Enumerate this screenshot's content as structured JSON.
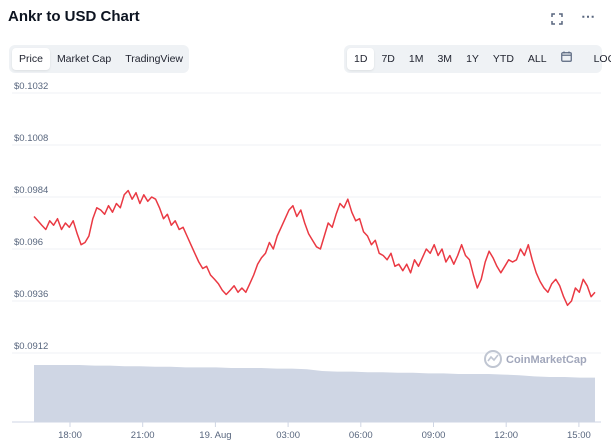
{
  "header": {
    "title": "Ankr to USD Chart",
    "fullscreen_icon": "fullscreen-icon",
    "more_icon": "more-icon"
  },
  "view_tabs": [
    {
      "label": "Price",
      "active": true
    },
    {
      "label": "Market Cap",
      "active": false
    },
    {
      "label": "TradingView",
      "active": false
    }
  ],
  "range_tabs": [
    {
      "label": "1D",
      "active": true
    },
    {
      "label": "7D",
      "active": false
    },
    {
      "label": "1M",
      "active": false
    },
    {
      "label": "3M",
      "active": false
    },
    {
      "label": "1Y",
      "active": false
    },
    {
      "label": "YTD",
      "active": false
    },
    {
      "label": "ALL",
      "active": false
    }
  ],
  "calendar_icon": "calendar-icon",
  "log_label": "LOG",
  "watermark": "CoinMarketCap",
  "colors": {
    "line": "#ea3943",
    "volume": "#cfd6e4",
    "grid": "#eff2f5"
  },
  "chart_data": {
    "type": "line",
    "title": "Ankr to USD Chart",
    "xlabel": "",
    "ylabel": "",
    "x_ticks": [
      "18:00",
      "21:00",
      "19. Aug",
      "03:00",
      "06:00",
      "09:00",
      "12:00",
      "15:00"
    ],
    "y_ticks": [
      "$0.1032",
      "$0.1008",
      "$0.0984",
      "$0.096",
      "$0.0936",
      "$0.0912"
    ],
    "y_tick_values": [
      0.1032,
      0.1008,
      0.0984,
      0.096,
      0.0936,
      0.0912
    ],
    "ylim": [
      0.0912,
      0.1032
    ],
    "grid": true,
    "series": [
      {
        "values": [
          0.0975,
          0.0973,
          0.0971,
          0.0969,
          0.0973,
          0.0971,
          0.0974,
          0.0969,
          0.0972,
          0.097,
          0.0973,
          0.0967,
          0.0962,
          0.0963,
          0.0966,
          0.0974,
          0.0979,
          0.0978,
          0.0976,
          0.098,
          0.0977,
          0.0981,
          0.0979,
          0.0985,
          0.0987,
          0.0983,
          0.0986,
          0.0981,
          0.0985,
          0.0982,
          0.0984,
          0.0983,
          0.0979,
          0.0974,
          0.0976,
          0.0971,
          0.0973,
          0.0969,
          0.097,
          0.0966,
          0.0962,
          0.0958,
          0.0954,
          0.0951,
          0.0952,
          0.0948,
          0.0946,
          0.0944,
          0.0941,
          0.0939,
          0.0941,
          0.0943,
          0.094,
          0.0942,
          0.094,
          0.0944,
          0.0948,
          0.0953,
          0.0956,
          0.0958,
          0.0963,
          0.096,
          0.0966,
          0.097,
          0.0974,
          0.0978,
          0.098,
          0.0975,
          0.0978,
          0.0972,
          0.0967,
          0.0964,
          0.0961,
          0.096,
          0.0966,
          0.0972,
          0.097,
          0.0976,
          0.0981,
          0.0979,
          0.0983,
          0.0977,
          0.0973,
          0.0974,
          0.0968,
          0.0966,
          0.0962,
          0.0964,
          0.0958,
          0.0957,
          0.0955,
          0.0958,
          0.0952,
          0.0953,
          0.095,
          0.0953,
          0.0949,
          0.0955,
          0.0952,
          0.0956,
          0.096,
          0.0958,
          0.0962,
          0.0957,
          0.096,
          0.0954,
          0.0957,
          0.0953,
          0.0957,
          0.0962,
          0.0957,
          0.0955,
          0.0948,
          0.0942,
          0.0946,
          0.0954,
          0.0959,
          0.0956,
          0.0952,
          0.0949,
          0.0952,
          0.0955,
          0.0954,
          0.0955,
          0.096,
          0.0957,
          0.0962,
          0.0955,
          0.0949,
          0.0945,
          0.0942,
          0.094,
          0.0944,
          0.0946,
          0.0943,
          0.0938,
          0.0934,
          0.0936,
          0.0942,
          0.094,
          0.0946,
          0.0943,
          0.0938,
          0.094
        ]
      }
    ],
    "volume": [
      0.95,
      0.95,
      0.95,
      0.95,
      0.94,
      0.94,
      0.93,
      0.93,
      0.92,
      0.92,
      0.91,
      0.91,
      0.91,
      0.9,
      0.9,
      0.9,
      0.89,
      0.89,
      0.88,
      0.85,
      0.84,
      0.84,
      0.83,
      0.83,
      0.82,
      0.82,
      0.81,
      0.81,
      0.8,
      0.8,
      0.8,
      0.79,
      0.78,
      0.76,
      0.75,
      0.75,
      0.74,
      0.74
    ]
  }
}
